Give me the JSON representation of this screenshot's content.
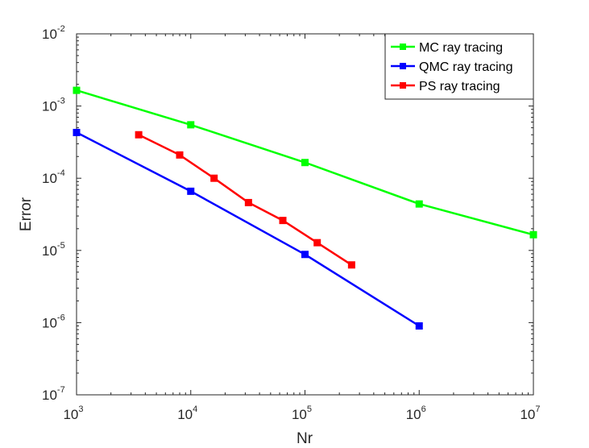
{
  "chart_data": {
    "type": "line",
    "xscale": "log",
    "yscale": "log",
    "xlabel": "Nr",
    "ylabel": "Error",
    "xlim": [
      1000,
      10000000
    ],
    "ylim": [
      1e-07,
      0.01
    ],
    "grid": false,
    "legend_position": "top-right",
    "x_ticks": [
      {
        "base": "10",
        "exp": "3"
      },
      {
        "base": "10",
        "exp": "4"
      },
      {
        "base": "10",
        "exp": "5"
      },
      {
        "base": "10",
        "exp": "6"
      },
      {
        "base": "10",
        "exp": "7"
      }
    ],
    "y_ticks": [
      {
        "base": "10",
        "exp": "-7"
      },
      {
        "base": "10",
        "exp": "-6"
      },
      {
        "base": "10",
        "exp": "-5"
      },
      {
        "base": "10",
        "exp": "-4"
      },
      {
        "base": "10",
        "exp": "-3"
      },
      {
        "base": "10",
        "exp": "-2"
      }
    ],
    "series": [
      {
        "name": "MC ray tracing",
        "color": "#00ff00",
        "x": [
          1000,
          10000,
          100000,
          1000000,
          10000000
        ],
        "y": [
          0.00165,
          0.00055,
          0.000165,
          4.4e-05,
          1.65e-05
        ]
      },
      {
        "name": "QMC ray tracing",
        "color": "#0000ff",
        "x": [
          1000,
          10000,
          100000,
          1000000
        ],
        "y": [
          0.00043,
          6.6e-05,
          8.8e-06,
          9e-07
        ]
      },
      {
        "name": "PS ray tracing",
        "color": "#ff0000",
        "x": [
          3500,
          8000,
          16000,
          32000,
          64000,
          128000,
          256000
        ],
        "y": [
          0.0004,
          0.00021,
          0.0001,
          4.6e-05,
          2.6e-05,
          1.28e-05,
          6.3e-06
        ]
      }
    ]
  }
}
